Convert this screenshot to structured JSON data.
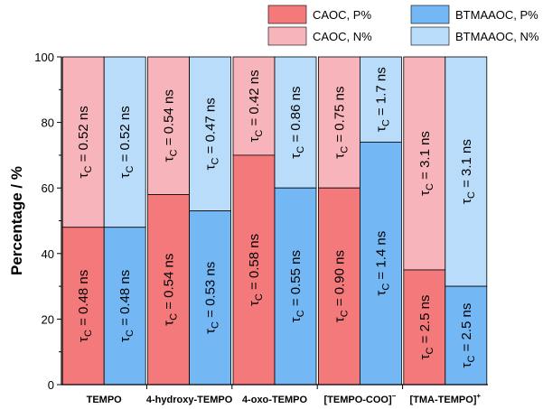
{
  "chart_data": {
    "type": "bar",
    "stacked": true,
    "ylabel": "Percentage / %",
    "ylim": [
      0,
      100
    ],
    "yticks": [
      0,
      20,
      40,
      60,
      80,
      100
    ],
    "categories": [
      {
        "label": "TEMPO",
        "sup": ""
      },
      {
        "label": "4-hydroxy-TEMPO",
        "sup": ""
      },
      {
        "label": "4-oxo-TEMPO",
        "sup": ""
      },
      {
        "label": "[TEMPO-COO]",
        "sup": "−"
      },
      {
        "label": "[TMA-TEMPO]",
        "sup": "+"
      }
    ],
    "legend": {
      "position": "top-right",
      "entries": [
        {
          "name": "CAOC, P%",
          "color": "#f4797b"
        },
        {
          "name": "BTMAAOC, P%",
          "color": "#73b8f5"
        },
        {
          "name": "CAOC, N%",
          "color": "#f7b4ba"
        },
        {
          "name": "BTMAAOC, N%",
          "color": "#b8dcf9"
        }
      ]
    },
    "bars": [
      {
        "category": 0,
        "system": "CAOC",
        "P": 48,
        "N": 52,
        "P_tau": "0.48 ns",
        "N_tau": "0.52 ns",
        "P_color": "#f4797b",
        "N_color": "#f7b4ba"
      },
      {
        "category": 0,
        "system": "BTMAAOC",
        "P": 48,
        "N": 52,
        "P_tau": "0.48 ns",
        "N_tau": "0.52 ns",
        "P_color": "#73b8f5",
        "N_color": "#b8dcf9"
      },
      {
        "category": 1,
        "system": "CAOC",
        "P": 58,
        "N": 42,
        "P_tau": "0.54 ns",
        "N_tau": "0.54 ns",
        "P_color": "#f4797b",
        "N_color": "#f7b4ba"
      },
      {
        "category": 1,
        "system": "BTMAAOC",
        "P": 53,
        "N": 47,
        "P_tau": "0.53 ns",
        "N_tau": "0.47 ns",
        "P_color": "#73b8f5",
        "N_color": "#b8dcf9"
      },
      {
        "category": 2,
        "system": "CAOC",
        "P": 70,
        "N": 30,
        "P_tau": "0.58 ns",
        "N_tau": "0.42 ns",
        "P_color": "#f4797b",
        "N_color": "#f7b4ba"
      },
      {
        "category": 2,
        "system": "BTMAAOC",
        "P": 60,
        "N": 40,
        "P_tau": "0.55 ns",
        "N_tau": "0.86 ns",
        "P_color": "#73b8f5",
        "N_color": "#b8dcf9"
      },
      {
        "category": 3,
        "system": "CAOC",
        "P": 60,
        "N": 40,
        "P_tau": "0.90 ns",
        "N_tau": "0.75 ns",
        "P_color": "#f4797b",
        "N_color": "#f7b4ba"
      },
      {
        "category": 3,
        "system": "BTMAAOC",
        "P": 74,
        "N": 26,
        "P_tau": "1.4 ns",
        "N_tau": "1.7 ns",
        "P_color": "#73b8f5",
        "N_color": "#b8dcf9"
      },
      {
        "category": 4,
        "system": "CAOC",
        "P": 35,
        "N": 65,
        "P_tau": "2.5 ns",
        "N_tau": "3.1 ns",
        "P_color": "#f4797b",
        "N_color": "#f7b4ba"
      },
      {
        "category": 4,
        "system": "BTMAAOC",
        "P": 30,
        "N": 70,
        "P_tau": "2.5 ns",
        "N_tau": "3.1 ns",
        "P_color": "#73b8f5",
        "N_color": "#b8dcf9"
      }
    ]
  }
}
